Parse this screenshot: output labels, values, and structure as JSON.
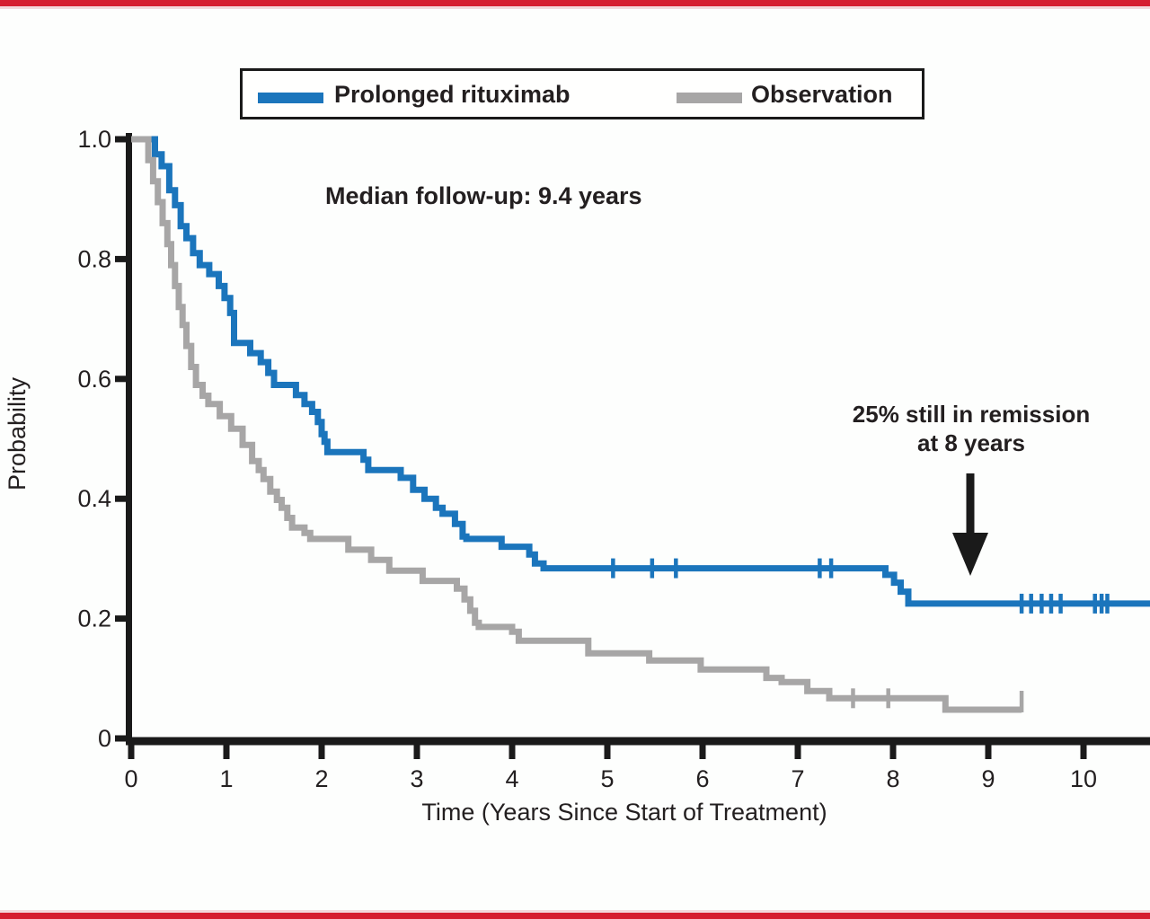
{
  "page": {
    "top_bar_color": "#d51f30",
    "bottom_bar_color": "#d51f30",
    "bar_soft_color": "#eab9c0",
    "background": "#fdfefd"
  },
  "legend": {
    "items": [
      {
        "label": "Prolonged rituximab",
        "color": "#1b75bc"
      },
      {
        "label": "Observation",
        "color": "#a7a6a6"
      }
    ]
  },
  "annotations": {
    "median_followup": "Median follow-up: 9.4 years",
    "remission_line1": "25% still in remission",
    "remission_line2": "at 8 years"
  },
  "chart_data": {
    "type": "line",
    "subtype": "kaplan_meier_step",
    "title": "",
    "xlabel": "Time (Years Since Start of Treatment)",
    "ylabel": "Probability",
    "xlim": [
      0,
      10.7
    ],
    "ylim": [
      0,
      1.0
    ],
    "grid": false,
    "legend_position": "top-center",
    "x_ticks": [
      0,
      1,
      2,
      3,
      4,
      5,
      6,
      7,
      8,
      9,
      10
    ],
    "y_ticks": [
      {
        "value": 1.0,
        "label": "1.0"
      },
      {
        "value": 0.8,
        "label": "0.8"
      },
      {
        "value": 0.6,
        "label": "0.6"
      },
      {
        "value": 0.4,
        "label": "0.4"
      },
      {
        "value": 0.2,
        "label": "0.2"
      },
      {
        "value": 0.0,
        "label": "0"
      }
    ],
    "axis_color": "#1a1a1a",
    "series": [
      {
        "name": "Prolonged rituximab",
        "color": "#1b75bc",
        "steps": [
          [
            0.0,
            1.0
          ],
          [
            0.25,
            0.975
          ],
          [
            0.32,
            0.955
          ],
          [
            0.4,
            0.915
          ],
          [
            0.46,
            0.89
          ],
          [
            0.52,
            0.855
          ],
          [
            0.58,
            0.835
          ],
          [
            0.65,
            0.81
          ],
          [
            0.72,
            0.79
          ],
          [
            0.82,
            0.775
          ],
          [
            0.92,
            0.755
          ],
          [
            0.98,
            0.735
          ],
          [
            1.04,
            0.71
          ],
          [
            1.08,
            0.66
          ],
          [
            1.25,
            0.643
          ],
          [
            1.36,
            0.628
          ],
          [
            1.44,
            0.61
          ],
          [
            1.5,
            0.59
          ],
          [
            1.73,
            0.573
          ],
          [
            1.82,
            0.558
          ],
          [
            1.9,
            0.545
          ],
          [
            1.96,
            0.528
          ],
          [
            2.0,
            0.508
          ],
          [
            2.03,
            0.495
          ],
          [
            2.06,
            0.478
          ],
          [
            2.44,
            0.465
          ],
          [
            2.49,
            0.448
          ],
          [
            2.83,
            0.435
          ],
          [
            2.96,
            0.415
          ],
          [
            3.08,
            0.4
          ],
          [
            3.2,
            0.385
          ],
          [
            3.27,
            0.375
          ],
          [
            3.4,
            0.358
          ],
          [
            3.48,
            0.337
          ],
          [
            3.52,
            0.333
          ],
          [
            3.89,
            0.32
          ],
          [
            4.18,
            0.307
          ],
          [
            4.24,
            0.292
          ],
          [
            4.33,
            0.284
          ],
          [
            7.92,
            0.273
          ],
          [
            8.01,
            0.26
          ],
          [
            8.08,
            0.245
          ],
          [
            8.16,
            0.225
          ]
        ],
        "end_time": 10.7,
        "censor_times": [
          5.06,
          5.47,
          5.72,
          7.23,
          7.35,
          9.35,
          9.45,
          9.56,
          9.66,
          9.76,
          10.12,
          10.19,
          10.25
        ]
      },
      {
        "name": "Observation",
        "color": "#a7a6a6",
        "steps": [
          [
            0.0,
            1.0
          ],
          [
            0.18,
            0.965
          ],
          [
            0.23,
            0.93
          ],
          [
            0.28,
            0.895
          ],
          [
            0.33,
            0.86
          ],
          [
            0.38,
            0.825
          ],
          [
            0.42,
            0.79
          ],
          [
            0.46,
            0.755
          ],
          [
            0.5,
            0.72
          ],
          [
            0.54,
            0.69
          ],
          [
            0.58,
            0.655
          ],
          [
            0.63,
            0.62
          ],
          [
            0.68,
            0.59
          ],
          [
            0.75,
            0.572
          ],
          [
            0.81,
            0.558
          ],
          [
            0.93,
            0.538
          ],
          [
            1.05,
            0.517
          ],
          [
            1.17,
            0.49
          ],
          [
            1.27,
            0.463
          ],
          [
            1.34,
            0.448
          ],
          [
            1.39,
            0.433
          ],
          [
            1.46,
            0.412
          ],
          [
            1.53,
            0.398
          ],
          [
            1.58,
            0.385
          ],
          [
            1.64,
            0.368
          ],
          [
            1.69,
            0.352
          ],
          [
            1.82,
            0.343
          ],
          [
            1.88,
            0.333
          ],
          [
            2.28,
            0.315
          ],
          [
            2.52,
            0.298
          ],
          [
            2.71,
            0.28
          ],
          [
            3.06,
            0.263
          ],
          [
            3.42,
            0.25
          ],
          [
            3.5,
            0.232
          ],
          [
            3.56,
            0.213
          ],
          [
            3.61,
            0.193
          ],
          [
            3.65,
            0.186
          ],
          [
            4.0,
            0.178
          ],
          [
            4.07,
            0.163
          ],
          [
            4.8,
            0.142
          ],
          [
            5.44,
            0.13
          ],
          [
            5.98,
            0.115
          ],
          [
            6.67,
            0.101
          ],
          [
            6.83,
            0.094
          ],
          [
            7.1,
            0.079
          ],
          [
            7.33,
            0.067
          ],
          [
            8.55,
            0.048
          ]
        ],
        "end_time": 9.35,
        "censor_times": [
          7.58,
          7.95
        ],
        "terminal_censor": 9.35
      }
    ]
  }
}
